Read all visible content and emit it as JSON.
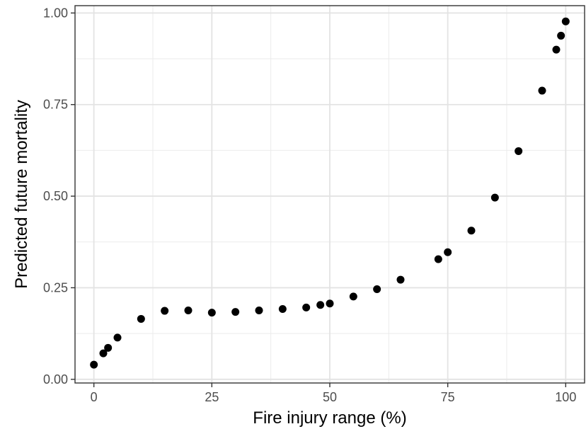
{
  "chart_data": {
    "type": "scatter",
    "title": "",
    "xlabel": "Fire injury range (%)",
    "ylabel": "Predicted future mortality",
    "xlim": [
      -4,
      104
    ],
    "ylim": [
      -0.01,
      1.02
    ],
    "x_ticks": [
      0,
      25,
      50,
      75,
      100
    ],
    "x_tick_labels": [
      "0",
      "25",
      "50",
      "75",
      "100"
    ],
    "y_ticks": [
      0,
      0.25,
      0.5,
      0.75,
      1.0
    ],
    "y_tick_labels": [
      "0.00",
      "0.25",
      "0.50",
      "0.75",
      "1.00"
    ],
    "grid": true,
    "point_color": "#000000",
    "points": [
      {
        "x": 0,
        "y": 0.04
      },
      {
        "x": 2,
        "y": 0.071
      },
      {
        "x": 3,
        "y": 0.086
      },
      {
        "x": 5,
        "y": 0.114
      },
      {
        "x": 10,
        "y": 0.165
      },
      {
        "x": 15,
        "y": 0.187
      },
      {
        "x": 20,
        "y": 0.188
      },
      {
        "x": 25,
        "y": 0.182
      },
      {
        "x": 30,
        "y": 0.184
      },
      {
        "x": 35,
        "y": 0.188
      },
      {
        "x": 40,
        "y": 0.192
      },
      {
        "x": 45,
        "y": 0.196
      },
      {
        "x": 48,
        "y": 0.203
      },
      {
        "x": 50,
        "y": 0.207
      },
      {
        "x": 55,
        "y": 0.226
      },
      {
        "x": 60,
        "y": 0.246
      },
      {
        "x": 65,
        "y": 0.272
      },
      {
        "x": 73,
        "y": 0.328
      },
      {
        "x": 75,
        "y": 0.347
      },
      {
        "x": 80,
        "y": 0.406
      },
      {
        "x": 85,
        "y": 0.496
      },
      {
        "x": 90,
        "y": 0.623
      },
      {
        "x": 95,
        "y": 0.788
      },
      {
        "x": 98,
        "y": 0.9
      },
      {
        "x": 99,
        "y": 0.938
      },
      {
        "x": 100,
        "y": 0.977
      }
    ]
  }
}
